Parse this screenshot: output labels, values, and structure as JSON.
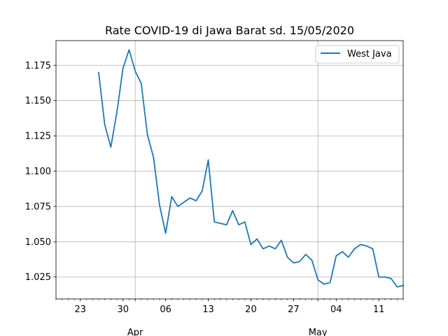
{
  "chart_data": {
    "type": "line",
    "title": "Rate COVID-19 di Jawa Barat sd. 15/05/2020",
    "xlabel": "",
    "ylabel": "",
    "legend": {
      "placement": "top-right",
      "entries": [
        "West Java"
      ]
    },
    "grid": true,
    "series_color": "#1f77b4",
    "xlim": [
      "2020-03-19",
      "2020-05-15"
    ],
    "ylim": [
      1.0095,
      1.1925
    ],
    "x_ticks_minor": [
      "23",
      "30",
      "06",
      "13",
      "20",
      "27",
      "04",
      "11"
    ],
    "x_ticks_major": [
      "Apr",
      "May"
    ],
    "y_ticks": [
      "1.025",
      "1.050",
      "1.075",
      "1.100",
      "1.125",
      "1.150",
      "1.175"
    ],
    "series": [
      {
        "name": "West Java",
        "x": [
          "2020-03-26",
          "2020-03-27",
          "2020-03-28",
          "2020-03-29",
          "2020-03-30",
          "2020-03-31",
          "2020-04-01",
          "2020-04-02",
          "2020-04-03",
          "2020-04-04",
          "2020-04-05",
          "2020-04-06",
          "2020-04-07",
          "2020-04-08",
          "2020-04-09",
          "2020-04-10",
          "2020-04-11",
          "2020-04-12",
          "2020-04-13",
          "2020-04-14",
          "2020-04-15",
          "2020-04-16",
          "2020-04-17",
          "2020-04-18",
          "2020-04-19",
          "2020-04-20",
          "2020-04-21",
          "2020-04-22",
          "2020-04-23",
          "2020-04-24",
          "2020-04-25",
          "2020-04-26",
          "2020-04-27",
          "2020-04-28",
          "2020-04-29",
          "2020-04-30",
          "2020-05-01",
          "2020-05-02",
          "2020-05-03",
          "2020-05-04",
          "2020-05-05",
          "2020-05-06",
          "2020-05-07",
          "2020-05-08",
          "2020-05-09",
          "2020-05-10",
          "2020-05-11",
          "2020-05-12",
          "2020-05-13",
          "2020-05-14",
          "2020-05-15"
        ],
        "y": [
          1.17,
          1.133,
          1.117,
          1.142,
          1.173,
          1.186,
          1.171,
          1.162,
          1.126,
          1.11,
          1.076,
          1.056,
          1.082,
          1.075,
          1.078,
          1.081,
          1.079,
          1.086,
          1.108,
          1.064,
          1.063,
          1.062,
          1.072,
          1.062,
          1.064,
          1.048,
          1.052,
          1.045,
          1.047,
          1.045,
          1.051,
          1.039,
          1.035,
          1.036,
          1.041,
          1.037,
          1.023,
          1.02,
          1.021,
          1.04,
          1.043,
          1.039,
          1.045,
          1.048,
          1.047,
          1.045,
          1.025,
          1.025,
          1.024,
          1.018,
          1.019
        ]
      }
    ]
  }
}
